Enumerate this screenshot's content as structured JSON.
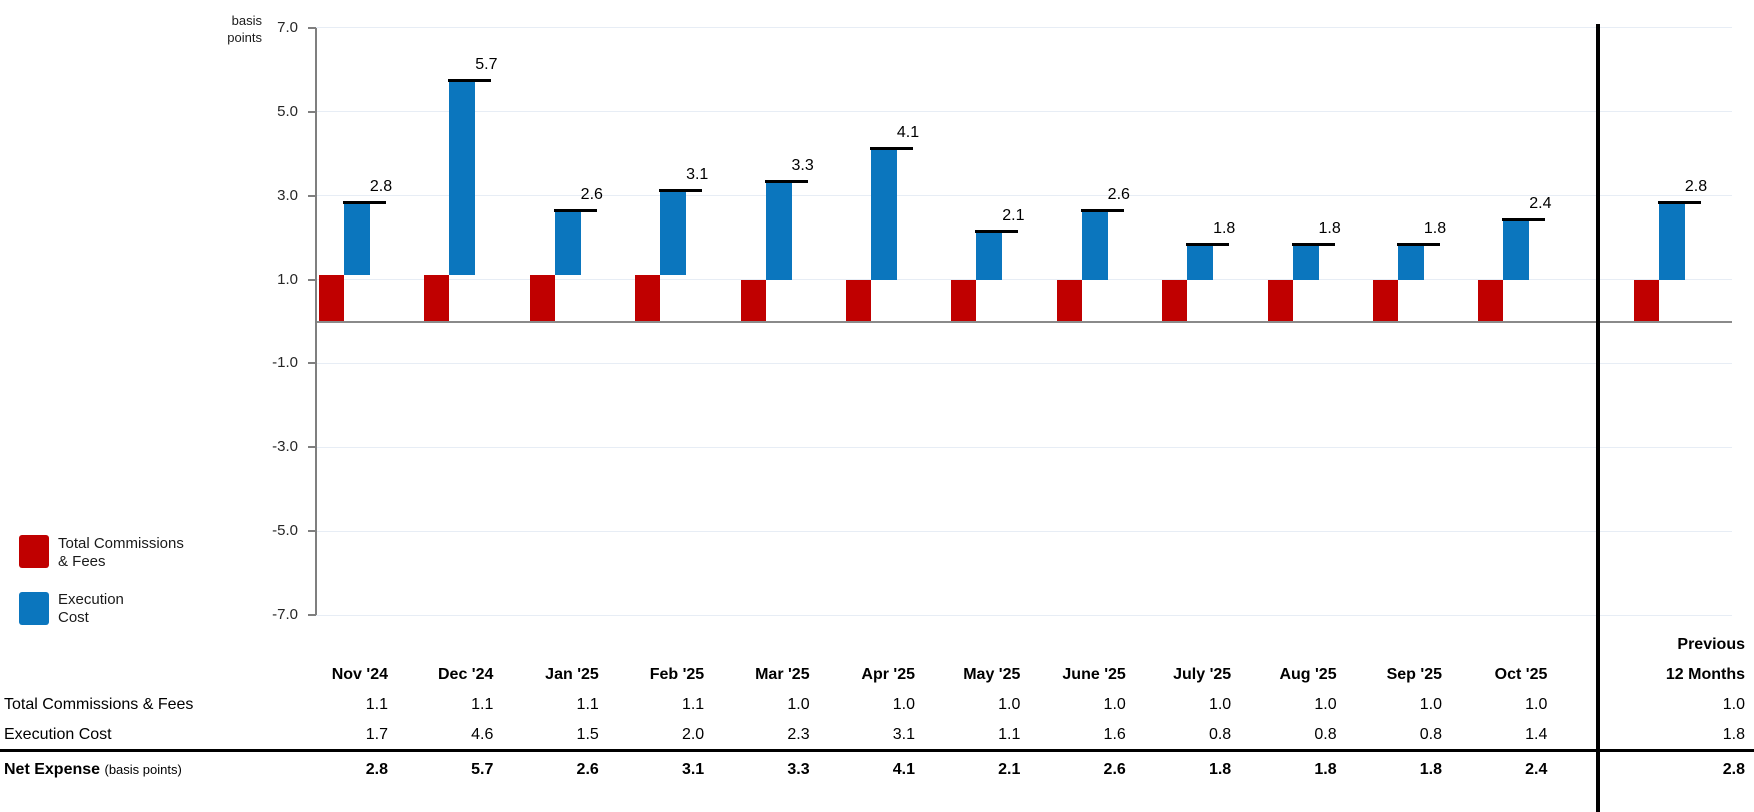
{
  "chart": {
    "unit_label_lines": [
      "basis",
      "points"
    ]
  },
  "chart_data": {
    "type": "bar",
    "subtype": "stacked-waterfall-with-total-markers",
    "unit": "basis points",
    "ylim": [
      -7.0,
      7.0
    ],
    "yticks": [
      7.0,
      5.0,
      3.0,
      1.0,
      -1.0,
      -3.0,
      -5.0,
      -7.0
    ],
    "grid": true,
    "legend_position": "left",
    "categories": [
      "Nov '24",
      "Dec '24",
      "Jan '25",
      "Feb '25",
      "Mar '25",
      "Apr '25",
      "May '25",
      "June '25",
      "July '25",
      "Aug '25",
      "Sep '25",
      "Oct '25",
      "Previous 12 Months"
    ],
    "series": [
      {
        "name": "Total Commissions & Fees",
        "color": "#c00000",
        "values": [
          1.1,
          1.1,
          1.1,
          1.1,
          1.0,
          1.0,
          1.0,
          1.0,
          1.0,
          1.0,
          1.0,
          1.0,
          1.0
        ]
      },
      {
        "name": "Execution Cost",
        "color": "#0b76be",
        "values": [
          1.7,
          4.6,
          1.5,
          2.0,
          2.3,
          3.1,
          1.1,
          1.6,
          0.8,
          0.8,
          0.8,
          1.4,
          1.8
        ]
      },
      {
        "name": "Net Expense",
        "color": "#000000",
        "marker": "dash-cap",
        "values": [
          2.8,
          5.7,
          2.6,
          3.1,
          3.3,
          4.1,
          2.1,
          2.6,
          1.8,
          1.8,
          1.8,
          2.4,
          2.8
        ]
      }
    ],
    "bar_value_labels": [
      "2.8",
      "5.7",
      "2.6",
      "3.1",
      "3.3",
      "4.1",
      "2.1",
      "2.6",
      "1.8",
      "1.8",
      "1.8",
      "2.4",
      "2.8"
    ]
  },
  "legend": {
    "items": [
      {
        "lines": [
          "Total Commissions",
          "& Fees"
        ],
        "color": "#c00000"
      },
      {
        "lines": [
          "Execution",
          "Cost"
        ],
        "color": "#0b76be"
      }
    ]
  },
  "table": {
    "col_headers": [
      "Nov '24",
      "Dec '24",
      "Jan '25",
      "Feb '25",
      "Mar '25",
      "Apr '25",
      "May '25",
      "June '25",
      "July '25",
      "Aug '25",
      "Sep '25",
      "Oct '25"
    ],
    "prev_header_lines": [
      "Previous",
      "12 Months"
    ],
    "rows": [
      {
        "label": "Total Commissions & Fees",
        "bold": false,
        "values": [
          1.1,
          1.1,
          1.1,
          1.1,
          1.0,
          1.0,
          1.0,
          1.0,
          1.0,
          1.0,
          1.0,
          1.0
        ],
        "prev": 1.0
      },
      {
        "label": "Execution Cost",
        "bold": false,
        "values": [
          1.7,
          4.6,
          1.5,
          2.0,
          2.3,
          3.1,
          1.1,
          1.6,
          0.8,
          0.8,
          0.8,
          1.4
        ],
        "prev": 1.8
      },
      {
        "label": "Net Expense",
        "label_note": "(basis points)",
        "bold": true,
        "values": [
          2.8,
          5.7,
          2.6,
          3.1,
          3.3,
          4.1,
          2.1,
          2.6,
          1.8,
          1.8,
          1.8,
          2.4
        ],
        "prev": 2.8
      }
    ]
  }
}
